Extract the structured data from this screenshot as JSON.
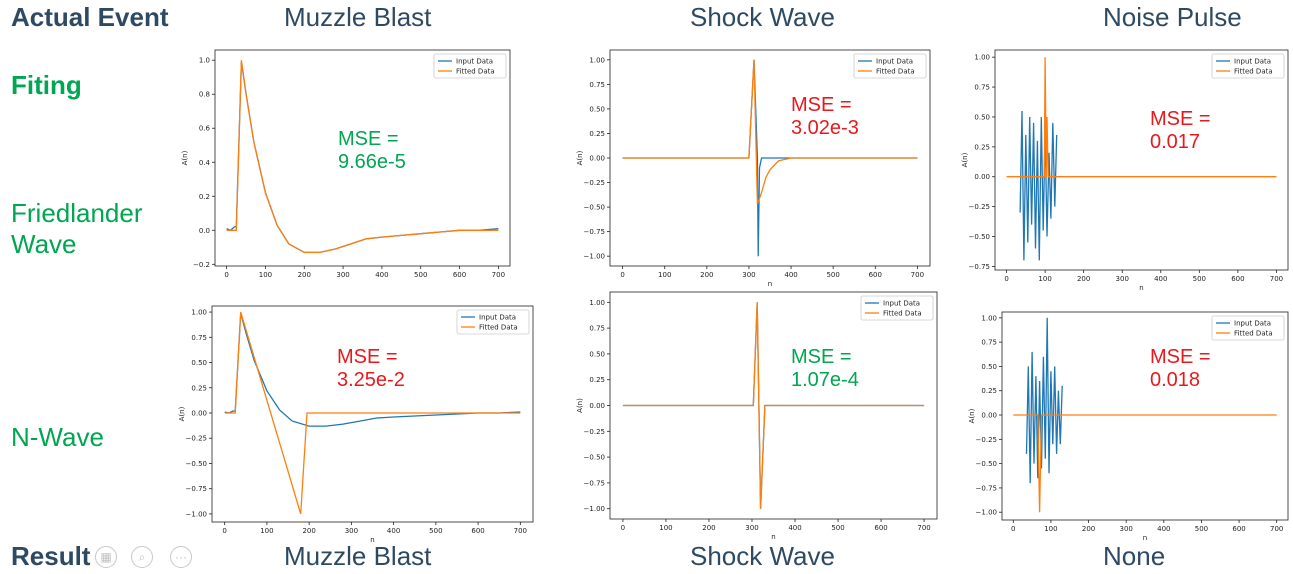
{
  "headers": {
    "actual_event": "Actual Event",
    "col1": "Muzzle Blast",
    "col2": "Shock Wave",
    "col3": "Noise Pulse",
    "result_label": "Result",
    "result1": "Muzzle Blast",
    "result2": "Shock Wave",
    "result3": "None"
  },
  "side": {
    "fitting": "Fiting",
    "friedlander": "Friedlander\nWave",
    "nwave": "N-Wave"
  },
  "colors": {
    "header_text": "#2e4a62",
    "green": "#00a651",
    "red": "#e8191d",
    "input_series": "#1f77b4",
    "fitted_series": "#ff7f0e"
  },
  "chart_data": [
    {
      "type": "line",
      "id": "friedlander-muzzle",
      "xlabel": "n",
      "ylabel": "A(n)",
      "xlim": [
        -30,
        730
      ],
      "ylim": [
        -0.21,
        1.06
      ],
      "xticks": [
        0,
        100,
        200,
        300,
        400,
        500,
        600,
        700
      ],
      "yticks": [
        -0.2,
        0.0,
        0.2,
        0.4,
        0.6,
        0.8,
        1.0
      ],
      "ytick_labels": [
        "−0.2",
        "0.0",
        "0.2",
        "0.4",
        "0.6",
        "0.8",
        "1.0"
      ],
      "legend": [
        "Input Data",
        "Fitted Data"
      ],
      "legend_position": "top-right",
      "mse": "MSE =\n9.66e-5",
      "mse_color": "green",
      "series": [
        {
          "name": "Input Data",
          "x": [
            0,
            10,
            20,
            25,
            38,
            50,
            70,
            100,
            130,
            160,
            200,
            240,
            280,
            320,
            360,
            400,
            450,
            500,
            550,
            600,
            650,
            700
          ],
          "y": [
            0.01,
            0.0,
            0.02,
            0.02,
            0.99,
            0.8,
            0.52,
            0.22,
            0.03,
            -0.08,
            -0.13,
            -0.13,
            -0.11,
            -0.08,
            -0.05,
            -0.04,
            -0.03,
            -0.02,
            -0.01,
            0.0,
            0.0,
            0.01
          ]
        },
        {
          "name": "Fitted Data",
          "x": [
            0,
            10,
            20,
            25,
            38,
            50,
            70,
            100,
            130,
            160,
            200,
            240,
            280,
            320,
            360,
            400,
            450,
            500,
            550,
            600,
            650,
            700
          ],
          "y": [
            0.0,
            0.0,
            0.0,
            0.0,
            1.0,
            0.8,
            0.52,
            0.22,
            0.03,
            -0.08,
            -0.13,
            -0.13,
            -0.11,
            -0.08,
            -0.05,
            -0.04,
            -0.03,
            -0.02,
            -0.01,
            0.0,
            0.0,
            0.0
          ]
        }
      ]
    },
    {
      "type": "line",
      "id": "friedlander-shock",
      "xlabel": "n",
      "ylabel": "A(n)",
      "xlim": [
        -30,
        730
      ],
      "ylim": [
        -1.1,
        1.1
      ],
      "xticks": [
        0,
        100,
        200,
        300,
        400,
        500,
        600,
        700
      ],
      "yticks": [
        -1.0,
        -0.75,
        -0.5,
        -0.25,
        0.0,
        0.25,
        0.5,
        0.75,
        1.0
      ],
      "ytick_labels": [
        "−1.00",
        "−0.75",
        "−0.50",
        "−0.25",
        "0.00",
        "0.25",
        "0.50",
        "0.75",
        "1.00"
      ],
      "legend": [
        "Input Data",
        "Fitted Data"
      ],
      "legend_position": "top-right",
      "mse": "MSE =\n3.02e-3",
      "mse_color": "red",
      "series": [
        {
          "name": "Input Data",
          "x": [
            0,
            100,
            200,
            300,
            300,
            312,
            320,
            322,
            325,
            330,
            360,
            400,
            500,
            600,
            700
          ],
          "y": [
            0.0,
            0.0,
            0.0,
            0.0,
            0.0,
            1.0,
            0.0,
            -1.0,
            -0.1,
            0.0,
            0.0,
            0.0,
            0.0,
            0.0,
            0.0
          ]
        },
        {
          "name": "Fitted Data",
          "x": [
            0,
            100,
            200,
            300,
            300,
            312,
            320,
            330,
            340,
            350,
            370,
            400,
            500,
            600,
            700
          ],
          "y": [
            0.0,
            0.0,
            0.0,
            0.0,
            0.0,
            1.0,
            -0.47,
            -0.35,
            -0.2,
            -0.12,
            -0.03,
            0.0,
            0.0,
            0.0,
            0.0
          ]
        }
      ]
    },
    {
      "type": "line",
      "id": "friedlander-noise",
      "xlabel": "n",
      "ylabel": "A(n)",
      "xlim": [
        -30,
        730
      ],
      "ylim": [
        -0.78,
        1.06
      ],
      "xticks": [
        0,
        100,
        200,
        300,
        400,
        500,
        600,
        700
      ],
      "yticks": [
        -0.75,
        -0.5,
        -0.25,
        0.0,
        0.25,
        0.5,
        0.75,
        1.0
      ],
      "ytick_labels": [
        "−0.75",
        "−0.50",
        "−0.25",
        "0.00",
        "0.25",
        "0.50",
        "0.75",
        "1.00"
      ],
      "legend": [
        "Input Data",
        "Fitted Data"
      ],
      "legend_position": "top-right",
      "mse": "MSE =\n0.017",
      "mse_color": "red",
      "series": [
        {
          "name": "Input Data",
          "x": [
            35,
            40,
            45,
            50,
            55,
            60,
            65,
            70,
            75,
            80,
            85,
            90,
            95,
            100,
            105,
            110,
            115,
            120,
            125,
            130
          ],
          "y": [
            -0.3,
            0.55,
            -0.7,
            0.35,
            -0.55,
            0.5,
            -0.4,
            0.45,
            -0.6,
            0.3,
            -0.7,
            0.5,
            -0.45,
            0.4,
            -0.5,
            0.2,
            -0.35,
            0.45,
            -0.25,
            0.35
          ]
        },
        {
          "name": "Fitted Data",
          "x": [
            0,
            98,
            100,
            103,
            105,
            108,
            700
          ],
          "y": [
            0.0,
            0.0,
            1.0,
            0.0,
            0.5,
            0.0,
            0.0
          ]
        }
      ]
    },
    {
      "type": "line",
      "id": "nwave-muzzle",
      "xlabel": "n",
      "ylabel": "A(n)",
      "xlim": [
        -30,
        730
      ],
      "ylim": [
        -1.08,
        1.06
      ],
      "xticks": [
        0,
        100,
        200,
        300,
        400,
        500,
        600,
        700
      ],
      "yticks": [
        -1.0,
        -0.75,
        -0.5,
        -0.25,
        0.0,
        0.25,
        0.5,
        0.75,
        1.0
      ],
      "ytick_labels": [
        "−1.00",
        "−0.75",
        "−0.50",
        "−0.25",
        "0.00",
        "0.25",
        "0.50",
        "0.75",
        "1.00"
      ],
      "legend": [
        "Input Data",
        "Fitted Data"
      ],
      "legend_position": "top-right",
      "mse": "MSE =\n3.25e-2",
      "mse_color": "red",
      "series": [
        {
          "name": "Input Data",
          "x": [
            0,
            10,
            20,
            25,
            38,
            50,
            70,
            100,
            130,
            160,
            200,
            240,
            280,
            320,
            360,
            400,
            450,
            500,
            550,
            600,
            650,
            700
          ],
          "y": [
            0.01,
            0.0,
            0.02,
            0.02,
            0.99,
            0.8,
            0.52,
            0.22,
            0.03,
            -0.08,
            -0.13,
            -0.13,
            -0.11,
            -0.08,
            -0.05,
            -0.04,
            -0.03,
            -0.02,
            -0.01,
            0.0,
            0.0,
            0.01
          ]
        },
        {
          "name": "Fitted Data",
          "x": [
            0,
            25,
            38,
            180,
            195,
            700
          ],
          "y": [
            0.0,
            0.0,
            1.0,
            -1.0,
            0.0,
            0.0
          ]
        }
      ]
    },
    {
      "type": "line",
      "id": "nwave-shock",
      "xlabel": "n",
      "ylabel": "A(n)",
      "xlim": [
        -30,
        730
      ],
      "ylim": [
        -1.1,
        1.1
      ],
      "xticks": [
        0,
        100,
        200,
        300,
        400,
        500,
        600,
        700
      ],
      "yticks": [
        -1.0,
        -0.75,
        -0.5,
        -0.25,
        0.0,
        0.25,
        0.5,
        0.75,
        1.0
      ],
      "ytick_labels": [
        "−1.00",
        "−0.75",
        "−0.50",
        "−0.25",
        "0.00",
        "0.25",
        "0.50",
        "0.75",
        "1.00"
      ],
      "legend": [
        "Input Data",
        "Fitted Data"
      ],
      "legend_position": "top-right",
      "mse": "MSE =\n1.07e-4",
      "mse_color": "green",
      "series": [
        {
          "name": "Input Data",
          "x": [
            0,
            100,
            200,
            300,
            303,
            312,
            320,
            330,
            340,
            400,
            500,
            600,
            700
          ],
          "y": [
            0.0,
            0.0,
            0.0,
            0.0,
            0.0,
            1.0,
            -1.0,
            0.0,
            0.0,
            0.0,
            0.0,
            0.0,
            0.0
          ]
        },
        {
          "name": "Fitted Data",
          "x": [
            0,
            100,
            200,
            300,
            303,
            312,
            320,
            330,
            340,
            400,
            500,
            600,
            700
          ],
          "y": [
            0.0,
            0.0,
            0.0,
            0.0,
            0.0,
            1.0,
            -1.0,
            0.0,
            0.0,
            0.0,
            0.0,
            0.0,
            0.0
          ]
        }
      ]
    },
    {
      "type": "line",
      "id": "nwave-noise",
      "xlabel": "n",
      "ylabel": "A(n)",
      "xlim": [
        -30,
        730
      ],
      "ylim": [
        -1.08,
        1.06
      ],
      "xticks": [
        0,
        100,
        200,
        300,
        400,
        500,
        600,
        700
      ],
      "yticks": [
        -1.0,
        -0.75,
        -0.5,
        -0.25,
        0.0,
        0.25,
        0.5,
        0.75,
        1.0
      ],
      "ytick_labels": [
        "−1.00",
        "−0.75",
        "−0.50",
        "−0.25",
        "0.00",
        "0.25",
        "0.50",
        "0.75",
        "1.00"
      ],
      "legend": [
        "Input Data",
        "Fitted Data"
      ],
      "legend_position": "top-right",
      "mse": "MSE =\n0.018",
      "mse_color": "red",
      "series": [
        {
          "name": "Input Data",
          "x": [
            35,
            40,
            45,
            50,
            55,
            60,
            65,
            70,
            75,
            80,
            85,
            90,
            95,
            100,
            105,
            110,
            115,
            120,
            125,
            130
          ],
          "y": [
            -0.4,
            0.5,
            -0.7,
            0.65,
            -0.5,
            0.4,
            -0.65,
            0.35,
            -0.55,
            0.6,
            -0.45,
            1.0,
            -0.6,
            0.45,
            -0.3,
            0.5,
            -0.4,
            0.25,
            -0.3,
            0.3
          ]
        },
        {
          "name": "Fitted Data",
          "x": [
            0,
            65,
            70,
            75,
            80,
            700
          ],
          "y": [
            0.0,
            0.0,
            -1.0,
            0.0,
            0.0,
            0.0
          ]
        }
      ]
    }
  ]
}
